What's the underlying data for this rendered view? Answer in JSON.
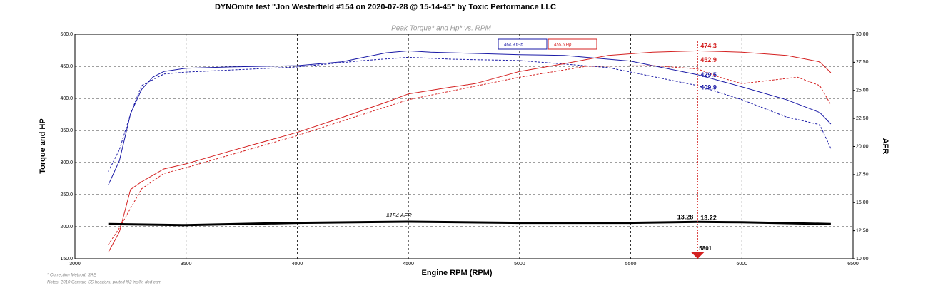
{
  "chart_data": {
    "type": "line",
    "title": "DYNOmite test \"Jon Westerfield #154 on 2020-07-28 @ 15-14-45\" by Toxic Performance LLC",
    "subtitle": "Peak Torque* and Hp* vs. RPM",
    "x_label": "Engine RPM (RPM)",
    "y_label": "Torque and HP",
    "y2_label": "AFR",
    "notes": [
      "* Correction Method: SAE",
      "Notes: 2010 Camaro SS headers, ported l92 ins/lk, dod cam"
    ],
    "xlim": [
      3000,
      6500
    ],
    "xticks": [
      3000,
      3500,
      4000,
      4500,
      5000,
      5500,
      6000,
      6500
    ],
    "ylim": [
      150,
      500
    ],
    "yticks": [
      {
        "value": 150,
        "label": "150.0"
      },
      {
        "value": 200,
        "label": "200.0"
      },
      {
        "value": 250,
        "label": "250.0"
      },
      {
        "value": 300,
        "label": "300.0"
      },
      {
        "value": 350,
        "label": "350.0"
      },
      {
        "value": 400,
        "label": "400.0"
      },
      {
        "value": 450,
        "label": "450.0"
      },
      {
        "value": 500,
        "label": "500.0"
      }
    ],
    "y2lim": [
      10,
      30
    ],
    "y2ticks": [
      {
        "value": 10,
        "label": "10.00"
      },
      {
        "value": 12.5,
        "label": "12.50"
      },
      {
        "value": 15,
        "label": "15.00"
      },
      {
        "value": 17.5,
        "label": "17.50"
      },
      {
        "value": 20,
        "label": "20.00"
      },
      {
        "value": 22.5,
        "label": "22.50"
      },
      {
        "value": 25,
        "label": "25.00"
      },
      {
        "value": 27.5,
        "label": "27.50"
      },
      {
        "value": 30,
        "label": "30.00"
      }
    ],
    "grid": true,
    "series": [
      {
        "name": "464.9 ft-lb",
        "color": "#1a1aa6",
        "dashed": false,
        "x": [
          3150,
          3200,
          3250,
          3300,
          3350,
          3400,
          3500,
          3700,
          4000,
          4200,
          4400,
          4500,
          4600,
          4700,
          5000,
          5200,
          5500,
          5800,
          6000,
          6200,
          6350,
          6400
        ],
        "values": [
          265,
          303,
          376,
          414,
          433,
          442,
          447,
          449,
          451,
          457,
          471,
          474,
          472,
          471,
          468,
          467,
          458,
          437,
          418,
          398,
          378,
          360
        ]
      },
      {
        "color": "#1a1aa6",
        "dashed": true,
        "x": [
          3150,
          3200,
          3250,
          3300,
          3400,
          3500,
          4000,
          4300,
          4500,
          4700,
          5000,
          5400,
          5800,
          6000,
          6200,
          6350,
          6400
        ],
        "values": [
          286,
          320,
          376,
          420,
          438,
          441,
          449,
          459,
          464,
          461,
          459,
          448,
          420,
          398,
          371,
          359,
          322
        ]
      },
      {
        "name": "455.5 Hp",
        "color": "#d42020",
        "dashed": false,
        "x": [
          3150,
          3200,
          3250,
          3300,
          3400,
          3500,
          3700,
          4000,
          4200,
          4400,
          4500,
          4700,
          4800,
          5000,
          5200,
          5400,
          5600,
          5800,
          6000,
          6200,
          6350,
          6400
        ],
        "values": [
          160,
          192,
          258,
          270,
          290,
          298,
          318,
          347,
          370,
          394,
          407,
          418,
          423,
          442,
          454,
          467,
          472,
          474,
          472,
          467,
          457,
          440
        ]
      },
      {
        "color": "#d42020",
        "dashed": true,
        "x": [
          3150,
          3200,
          3300,
          3400,
          3500,
          4000,
          4500,
          5000,
          5300,
          5600,
          5800,
          5900,
          6000,
          6100,
          6250,
          6350,
          6400
        ],
        "values": [
          172,
          198,
          259,
          283,
          292,
          342,
          398,
          433,
          450,
          451,
          446,
          433,
          423,
          427,
          433,
          420,
          390
        ]
      },
      {
        "name": "#154 AFR",
        "color": "#000000",
        "dashed": false,
        "axis": "y2",
        "x": [
          3150,
          3500,
          4000,
          4500,
          5000,
          5500,
          5801,
          6000,
          6400
        ],
        "values": [
          13.1,
          13.0,
          13.2,
          13.3,
          13.2,
          13.2,
          13.28,
          13.25,
          13.1
        ]
      }
    ],
    "cursor": {
      "x": 5801,
      "color": "#d42020",
      "readouts": [
        {
          "value": 474.3,
          "color": "#d42020"
        },
        {
          "value": 452.9,
          "color": "#d42020"
        },
        {
          "value": 429.5,
          "color": "#1a1aa6"
        },
        {
          "value": 409.9,
          "color": "#1a1aa6"
        },
        {
          "value": 13.28,
          "color": "#000000",
          "axis": "y2",
          "side": "left"
        },
        {
          "value": 13.22,
          "color": "#000000",
          "axis": "y2"
        }
      ]
    }
  }
}
